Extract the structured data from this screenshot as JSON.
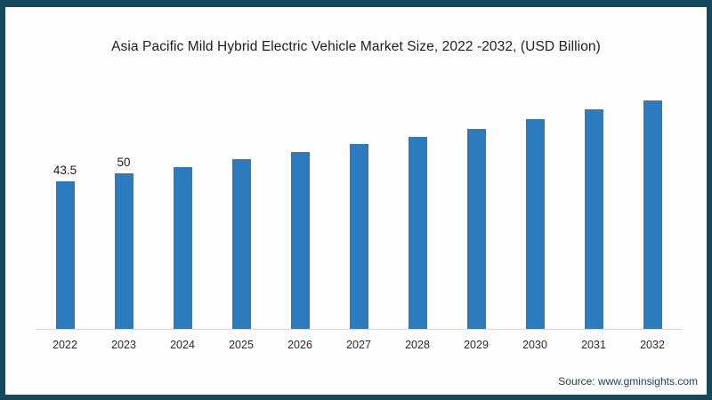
{
  "title": "Asia Pacific Mild Hybrid Electric Vehicle Market Size, 2022 -2032, (USD Billion)",
  "source_label": "Source: www.gminsights.com",
  "colors": {
    "frame_border": "#16485C",
    "bar": "#2C7BBE",
    "baseline": "#d9d9d9"
  },
  "chart_data": {
    "type": "bar",
    "title": "Asia Pacific Mild Hybrid Electric Vehicle Market Size, 2022 -2032, (USD Billion)",
    "categories": [
      "2022",
      "2023",
      "2024",
      "2025",
      "2026",
      "2027",
      "2028",
      "2029",
      "2030",
      "2031",
      "2032"
    ],
    "values": [
      43.5,
      50,
      56,
      62.5,
      68.5,
      75.5,
      82,
      88.5,
      97,
      105.5,
      113
    ],
    "data_labels": [
      "43.5",
      "50",
      "",
      "",
      "",
      "",
      "",
      "",
      "",
      "",
      ""
    ],
    "xlabel": "",
    "ylabel": "",
    "value_axis_shown": false,
    "grid": false,
    "legend_position": "none",
    "baseline_axis_line": true,
    "bar_color": "#2C7BBE",
    "units": "USD Billion"
  }
}
